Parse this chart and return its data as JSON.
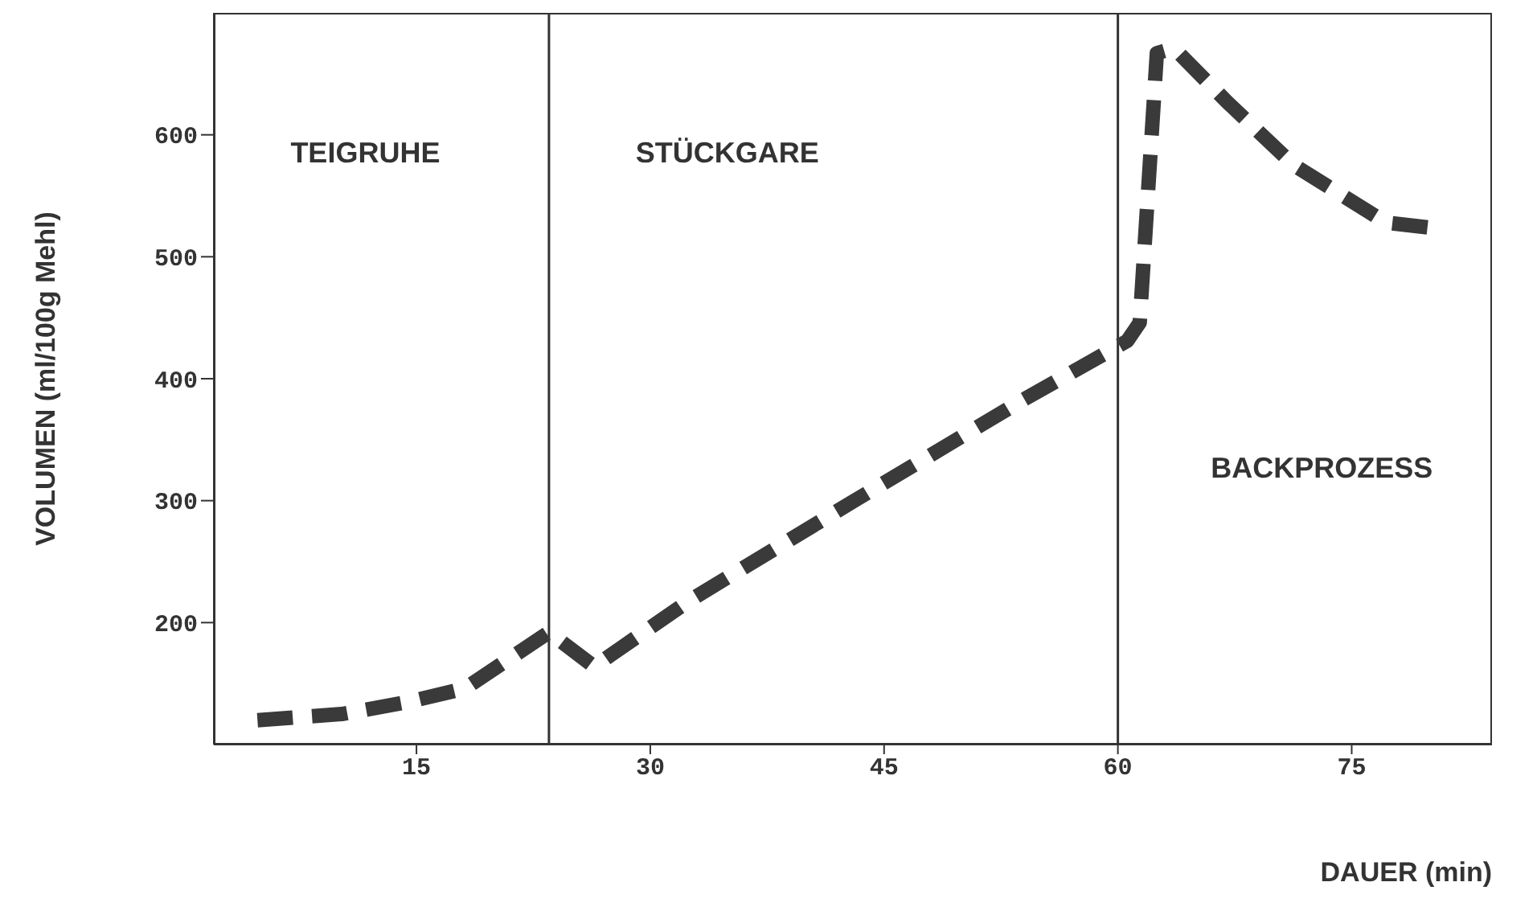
{
  "chart_data": {
    "type": "line",
    "xlabel": "DAUER (min)",
    "ylabel": "VOLUMEN (ml/100g Mehl)",
    "x": [
      4.8,
      10.2,
      14.5,
      18.1,
      23.5,
      26.4,
      32.5,
      43.1,
      53.7,
      60.6,
      61.4,
      62.5,
      63.6,
      67,
      71.3,
      77.2,
      80.6
    ],
    "series": [
      {
        "color": "#3a3a3a",
        "values": [
          120,
          125,
          135,
          146,
          192,
          164,
          218,
          300,
          381,
          431,
          446,
          667,
          671,
          627,
          575,
          528,
          523
        ]
      }
    ],
    "xlim": [
      2,
      84
    ],
    "xticks": [
      15,
      30,
      45,
      60,
      75
    ],
    "ylim": [
      100,
      700
    ],
    "yticks": [
      200,
      300,
      400,
      500,
      600
    ],
    "grid": false,
    "legend": false,
    "marker": "none",
    "line_style": "dashed",
    "ref_lines": [
      {
        "axis": "x",
        "value": 23.5,
        "color": "#333333"
      },
      {
        "axis": "x",
        "value": 60,
        "color": "#333333"
      }
    ],
    "annotations": [
      "TEIGRUHE",
      "STÜCKGARE",
      "BACKPROZESS"
    ]
  }
}
